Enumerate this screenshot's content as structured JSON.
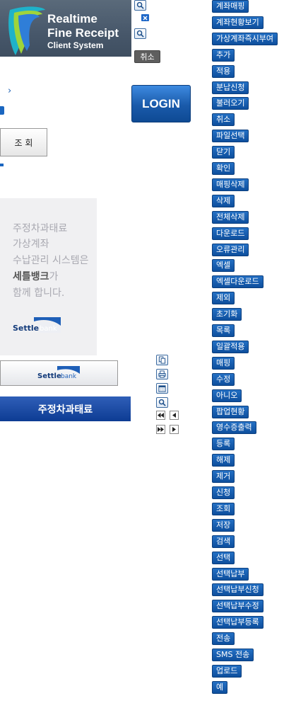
{
  "logo": {
    "line1": "Realtime",
    "line2": "Fine Receipt",
    "line3": "Client System"
  },
  "top_controls": {
    "cancel_label": "취소"
  },
  "arrow_glyph": "›",
  "login": {
    "label": "LOGIN"
  },
  "search": {
    "label": "조 회"
  },
  "banner": {
    "lines": [
      "주정차과태료",
      "가상계좌",
      "수납관리 시스템은",
      "세틀뱅크",
      "가",
      "함께 합니다."
    ],
    "brand_a": "Settle",
    "brand_b": "bank"
  },
  "blue_bar": {
    "label": "주정차과태료"
  },
  "right_buttons": [
    "계좌매핑",
    "계좌현황보기",
    "가상계좌즉시부여",
    "추가",
    "적용",
    "분납신청",
    "불러오기",
    "취소",
    "파일선택",
    "닫기",
    "확인",
    "매핑삭제",
    "삭제",
    "전체삭제",
    "다운로드",
    "오류관리",
    "엑셀",
    "엑셀다운로드",
    "제외",
    "초기화",
    "목록",
    "일괄적용",
    "매핑",
    "수정",
    "아니오",
    "팝업현황",
    "영수증출력",
    "등록",
    "해제",
    "제거",
    "신청",
    "조회",
    "저장",
    "검색",
    "선택",
    "선택납부",
    "선택납부신청",
    "선택납부수정",
    "선택납부등록",
    "전송",
    "SMS 전송",
    "업로드",
    "예"
  ]
}
